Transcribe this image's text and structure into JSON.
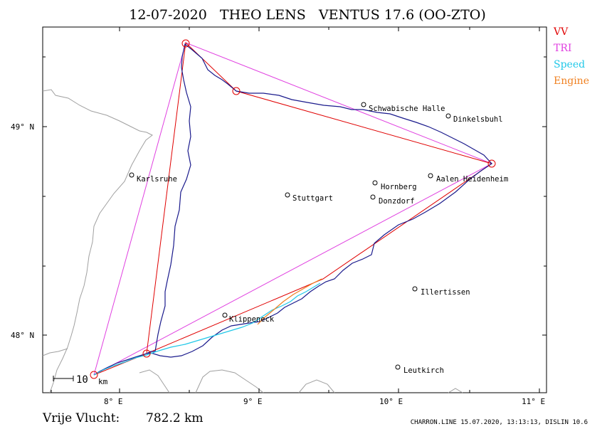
{
  "title": "12-07-2020   THEO LENS   VENTUS 17.6 (OO-ZTO)",
  "legend": [
    {
      "label": "VV",
      "color": "#e00000"
    },
    {
      "label": "TRI",
      "color": "#e040e0"
    },
    {
      "label": "Speed",
      "color": "#20c8e8"
    },
    {
      "label": "Engine",
      "color": "#f08020"
    }
  ],
  "axes": {
    "lon_labels": [
      "8° E",
      "9° E",
      "10° E",
      "11° E"
    ],
    "lat_labels": [
      "49° N",
      "48° N"
    ]
  },
  "scale_bar": {
    "value": "10",
    "unit": "km"
  },
  "cities": [
    {
      "name": "Karlsruhe"
    },
    {
      "name": "Stuttgart"
    },
    {
      "name": "Schwabische Halle"
    },
    {
      "name": "Dinkelsbuhl"
    },
    {
      "name": "Aalen Heidenheim"
    },
    {
      "name": "Hornberg"
    },
    {
      "name": "Donzdorf"
    },
    {
      "name": "Illertissen"
    },
    {
      "name": "Leutkirch"
    },
    {
      "name": "Klippeneck"
    }
  ],
  "distance_label": "Vrije Vlucht:",
  "distance_value": "782.2 km",
  "footer": "CHARRON.LINE 15.07.2020, 13:13:13, DISLIN 10.6",
  "colors": {
    "track": "#1a1a8c",
    "border": "#a0a0a0"
  }
}
